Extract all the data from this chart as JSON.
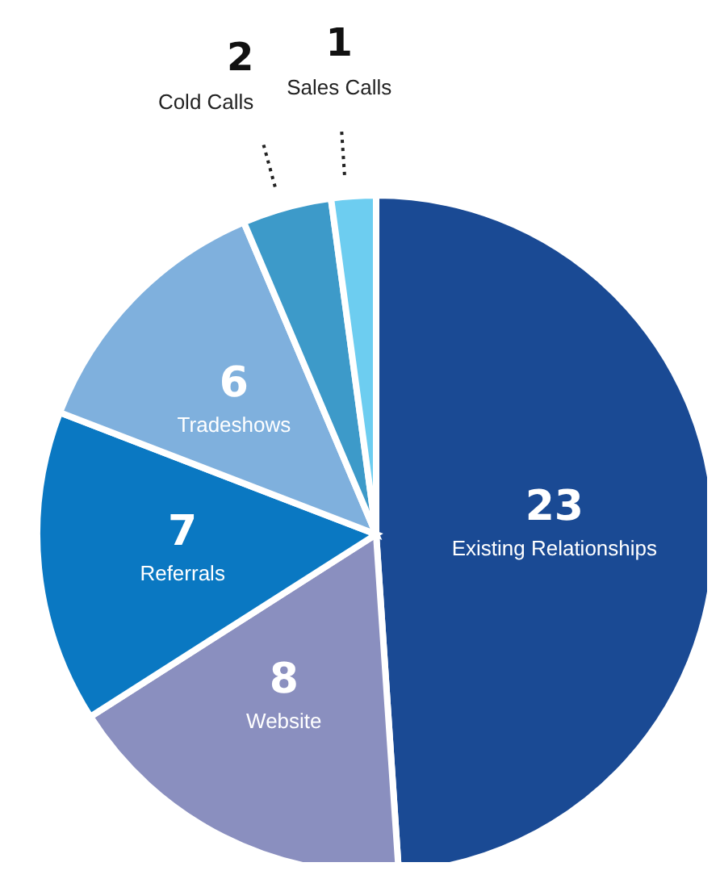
{
  "chart_data": {
    "type": "pie",
    "categories": [
      "Existing Relationships",
      "Website",
      "Referrals",
      "Tradeshows",
      "Cold Calls",
      "Sales Calls"
    ],
    "values": [
      23,
      8,
      7,
      6,
      2,
      1
    ],
    "colors": [
      "#1a4a94",
      "#8a8fbf",
      "#0a78c2",
      "#7fb0dd",
      "#3d9ac9",
      "#6dcdf0"
    ],
    "data_labels": true
  }
}
